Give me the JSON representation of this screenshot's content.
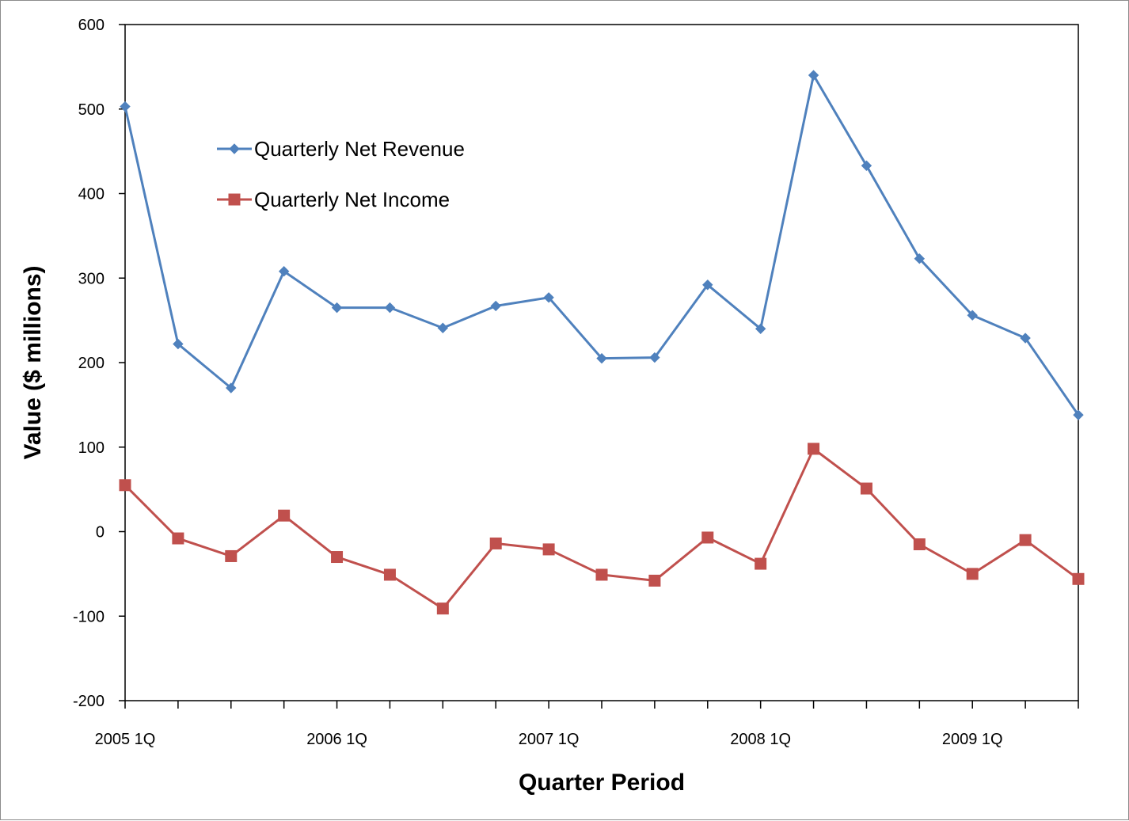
{
  "chart_data": {
    "type": "line",
    "title": "",
    "xlabel": "Quarter Period",
    "ylabel": "Value ($ millions)",
    "ylim": [
      -200,
      600
    ],
    "yticks": [
      -200,
      -100,
      0,
      100,
      200,
      300,
      400,
      500,
      600
    ],
    "x": [
      "2005 1Q",
      "2005 2Q",
      "2005 3Q",
      "2005 4Q",
      "2006 1Q",
      "2006 2Q",
      "2006 3Q",
      "2006 4Q",
      "2007 1Q",
      "2007 2Q",
      "2007 3Q",
      "2007 4Q",
      "2008 1Q",
      "2008 2Q",
      "2008 3Q",
      "2008 4Q",
      "2009 1Q",
      "2009 2Q",
      "2009 3Q"
    ],
    "xtick_labels": [
      {
        "index": 0,
        "label": "2005 1Q"
      },
      {
        "index": 4,
        "label": "2006 1Q"
      },
      {
        "index": 8,
        "label": "2007 1Q"
      },
      {
        "index": 12,
        "label": "2008 1Q"
      },
      {
        "index": 16,
        "label": "2009 1Q"
      }
    ],
    "grid": false,
    "legend_position": "upper-left",
    "series": [
      {
        "name": "Quarterly Net Revenue",
        "color": "#4f81bd",
        "marker": "diamond",
        "values": [
          503,
          222,
          170,
          308,
          265,
          265,
          241,
          267,
          277,
          205,
          206,
          292,
          240,
          540,
          433,
          323,
          256,
          229,
          138
        ]
      },
      {
        "name": "Quarterly Net Income",
        "color": "#c0504d",
        "marker": "square",
        "values": [
          55,
          -8,
          -29,
          19,
          -30,
          -51,
          -91,
          -14,
          -21,
          -51,
          -58,
          -7,
          -38,
          98,
          51,
          -15,
          -50,
          -10,
          -56
        ]
      }
    ]
  }
}
